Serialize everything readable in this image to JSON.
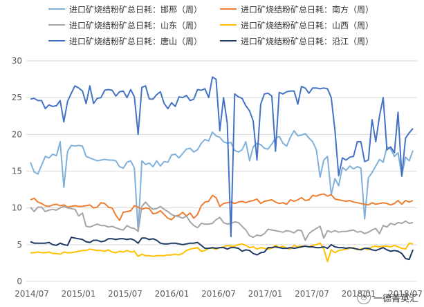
{
  "chart_data": {
    "type": "line",
    "ylim": [
      0,
      30
    ],
    "yticks": [
      0,
      5,
      10,
      15,
      20,
      25,
      30
    ],
    "xticks": [
      "2014/07",
      "2015/01",
      "2015/07",
      "2016/01",
      "2016/07",
      "2017/01",
      "2017/07",
      "2018/01",
      "2018/07"
    ],
    "grid": "horizontal",
    "legend_position": "top",
    "series": [
      {
        "name": "进口矿烧结粉矿总日耗：邯邢（周）",
        "color": "#7fb0dc",
        "values": [
          16.2,
          14.9,
          14.6,
          15.8,
          17.0,
          16.8,
          17.3,
          17.1,
          19.0,
          12.8,
          17.7,
          18.5,
          18.4,
          18.5,
          18.4,
          17.0,
          16.8,
          16.6,
          16.4,
          16.5,
          16.6,
          16.5,
          16.5,
          16.4,
          15.6,
          15.4,
          16.2,
          16.4,
          15.4,
          6.8,
          16.4,
          15.9,
          16.1,
          15.6,
          16.4,
          15.7,
          16.3,
          16.2,
          17.2,
          17.3,
          16.8,
          17.4,
          18.0,
          18.1,
          17.6,
          17.9,
          18.8,
          19.3,
          19.1,
          20.3,
          19.8,
          19.6,
          19.0,
          18.8,
          18.9,
          17.8,
          17.6,
          17.9,
          19.0,
          16.4,
          18.3,
          18.8,
          18.6,
          18.1,
          18.0,
          18.7,
          19.5,
          19.7,
          18.8,
          18.4,
          19.6,
          20.5,
          19.8,
          19.9,
          20.1,
          19.5,
          19.0,
          17.9,
          14.2,
          16.5,
          17.0,
          11.8,
          14.0,
          13.0,
          15.5,
          15.1,
          15.7,
          15.3,
          15.6,
          15.4,
          8.5,
          14.1,
          14.8,
          15.7,
          16.6,
          16.2,
          18.3,
          18.0,
          17.0,
          17.5,
          14.4,
          16.9,
          16.4,
          17.8
        ]
      },
      {
        "name": "进口矿烧结粉矿总日耗：南方（周）",
        "color": "#ed7d31",
        "values": [
          11.1,
          11.3,
          10.8,
          10.6,
          10.3,
          10.2,
          10.4,
          10.5,
          10.3,
          10.4,
          10.1,
          10.2,
          10.3,
          10.2,
          10.2,
          10.3,
          10.4,
          10.0,
          10.1,
          10.7,
          10.6,
          10.1,
          10.0,
          9.0,
          8.3,
          9.4,
          9.5,
          9.6,
          10.3,
          10.1,
          9.8,
          10.0,
          9.9,
          9.2,
          9.3,
          9.6,
          9.1,
          8.6,
          8.4,
          8.9,
          9.0,
          9.4,
          8.9,
          9.3,
          8.6,
          9.1,
          10.3,
          10.8,
          10.9,
          11.7,
          11.4,
          10.2,
          10.6,
          10.7,
          10.8,
          10.6,
          10.8,
          10.9,
          10.7,
          10.9,
          11.0,
          11.2,
          10.6,
          10.9,
          11.0,
          11.1,
          10.8,
          10.6,
          10.7,
          10.5,
          11.1,
          10.9,
          11.1,
          11.4,
          11.0,
          11.1,
          11.7,
          11.6,
          11.8,
          11.9,
          11.6,
          11.8,
          11.2,
          11.1,
          11.0,
          10.9,
          11.0,
          10.8,
          10.7,
          10.6,
          10.5,
          10.4,
          10.7,
          10.5,
          10.6,
          10.7,
          10.6,
          10.4,
          10.6,
          11.0,
          10.5,
          11.0,
          10.8,
          11.0
        ]
      },
      {
        "name": "进口矿烧结粉矿总日耗：山东（周）",
        "color": "#a5a5a5",
        "values": [
          10.1,
          9.5,
          10.1,
          10.1,
          9.5,
          9.7,
          9.8,
          9.7,
          10.0,
          10.2,
          10.0,
          9.9,
          9.8,
          8.9,
          9.3,
          7.5,
          7.4,
          7.6,
          7.8,
          7.6,
          7.6,
          7.4,
          7.5,
          7.3,
          7.1,
          7.0,
          7.6,
          7.3,
          7.2,
          6.8,
          10.2,
          10.8,
          10.2,
          9.8,
          9.9,
          10.2,
          9.8,
          9.5,
          9.1,
          8.9,
          8.8,
          8.6,
          8.9,
          8.1,
          7.6,
          7.3,
          7.9,
          7.8,
          7.8,
          7.9,
          8.4,
          8.7,
          8.0,
          7.8,
          7.9,
          8.1,
          8.0,
          7.5,
          7.0,
          6.2,
          6.0,
          6.3,
          6.2,
          6.5,
          7.1,
          7.0,
          6.9,
          6.8,
          6.7,
          6.9,
          6.8,
          6.6,
          7.0,
          6.9,
          5.6,
          6.5,
          6.9,
          7.2,
          7.5,
          5.9,
          6.9,
          6.7,
          6.9,
          6.7,
          6.8,
          6.8,
          6.9,
          7.0,
          6.7,
          6.8,
          6.5,
          6.7,
          7.0,
          7.2,
          6.5,
          7.6,
          7.4,
          7.9,
          7.7,
          8.0,
          7.9,
          8.2,
          7.9,
          8.0
        ]
      },
      {
        "name": "进口矿烧结粉矿总日耗：山西（周）",
        "color": "#ffc000",
        "values": [
          3.9,
          3.9,
          4.0,
          3.9,
          3.9,
          4.0,
          3.8,
          3.8,
          3.7,
          4.0,
          3.9,
          3.9,
          4.0,
          4.1,
          4.2,
          4.2,
          4.4,
          4.3,
          4.2,
          4.2,
          4.1,
          4.3,
          4.0,
          3.9,
          4.1,
          4.0,
          4.2,
          4.0,
          4.1,
          3.4,
          3.7,
          3.5,
          3.5,
          3.4,
          3.5,
          3.5,
          3.5,
          3.6,
          3.6,
          3.7,
          3.6,
          3.8,
          4.2,
          4.4,
          4.5,
          4.6,
          4.1,
          4.2,
          4.5,
          4.5,
          4.4,
          4.6,
          4.7,
          4.9,
          4.8,
          4.8,
          5.0,
          5.1,
          4.9,
          4.6,
          4.7,
          4.4,
          4.6,
          4.5,
          4.4,
          4.5,
          4.9,
          4.6,
          4.8,
          4.5,
          4.4,
          4.9,
          4.7,
          4.8,
          4.8,
          4.7,
          4.9,
          5.0,
          5.2,
          4.4,
          2.7,
          4.3,
          3.9,
          4.2,
          4.3,
          4.4,
          4.5,
          4.6,
          4.3,
          4.4,
          4.5,
          4.3,
          4.7,
          4.8,
          4.7,
          4.8,
          4.8,
          4.7,
          4.9,
          4.7,
          4.5,
          4.4,
          5.2,
          5.1
        ]
      },
      {
        "name": "进口矿烧结粉矿总日耗：唐山（周）",
        "color": "#4472c4",
        "values": [
          24.8,
          24.9,
          24.6,
          24.6,
          23.5,
          24.0,
          23.8,
          23.9,
          24.6,
          21.7,
          24.5,
          25.6,
          26.6,
          26.3,
          25.9,
          24.2,
          26.6,
          24.2,
          24.9,
          25.0,
          26.0,
          26.1,
          26.0,
          25.2,
          25.8,
          25.9,
          25.0,
          26.1,
          25.1,
          20.0,
          26.4,
          26.6,
          24.8,
          24.8,
          25.4,
          25.8,
          24.2,
          23.5,
          24.3,
          23.8,
          25.1,
          25.0,
          25.3,
          24.6,
          24.8,
          26.1,
          26.0,
          26.2,
          25.0,
          27.8,
          27.5,
          20.5,
          25.0,
          21.5,
          6.1,
          25.5,
          25.1,
          24.9,
          23.9,
          23.2,
          21.8,
          16.5,
          24.1,
          25.5,
          25.6,
          25.2,
          17.7,
          25.7,
          25.5,
          25.8,
          25.9,
          25.9,
          24.1,
          26.5,
          26.3,
          25.6,
          26.3,
          26.3,
          26.2,
          26.3,
          26.2,
          25.0,
          20.5,
          14.4,
          16.8,
          16.5,
          16.9,
          17.0,
          19.0,
          19.0,
          16.3,
          16.5,
          22.0,
          19.0,
          22.5,
          25.0,
          17.9,
          18.3,
          17.5,
          23.0,
          14.3,
          19.5,
          20.2,
          20.8
        ]
      },
      {
        "name": "进口矿烧结粉矿总日耗：沿江（周）",
        "color": "#1f3864",
        "values": [
          5.4,
          5.2,
          5.2,
          5.2,
          5.2,
          5.3,
          5.0,
          4.9,
          5.2,
          5.0,
          4.9,
          6.0,
          5.9,
          5.8,
          5.7,
          5.4,
          5.3,
          5.6,
          5.6,
          5.4,
          5.5,
          5.8,
          5.8,
          5.7,
          5.8,
          5.8,
          5.7,
          5.8,
          5.6,
          5.2,
          5.9,
          5.9,
          5.7,
          5.8,
          5.6,
          5.2,
          5.1,
          5.1,
          5.2,
          5.2,
          5.1,
          5.0,
          5.1,
          5.2,
          5.2,
          5.3,
          4.9,
          4.5,
          4.5,
          4.6,
          4.5,
          4.6,
          4.6,
          4.4,
          4.6,
          4.6,
          4.5,
          4.1,
          4.3,
          4.2,
          3.8,
          3.6,
          3.9,
          4.0,
          4.6,
          4.6,
          4.7,
          4.6,
          4.5,
          4.5,
          4.6,
          4.5,
          4.6,
          4.7,
          4.8,
          4.7,
          4.7,
          4.6,
          4.6,
          4.7,
          4.5,
          5.0,
          4.7,
          4.6,
          4.6,
          4.5,
          4.6,
          4.5,
          4.4,
          4.3,
          4.5,
          4.5,
          4.3,
          4.2,
          4.4,
          4.6,
          4.3,
          4.1,
          4.2,
          4.1,
          3.8,
          3.1,
          3.0,
          4.3
        ]
      }
    ]
  },
  "watermark": {
    "text": "一德菁英汇",
    "icon": "wechat-bubble-icon"
  }
}
